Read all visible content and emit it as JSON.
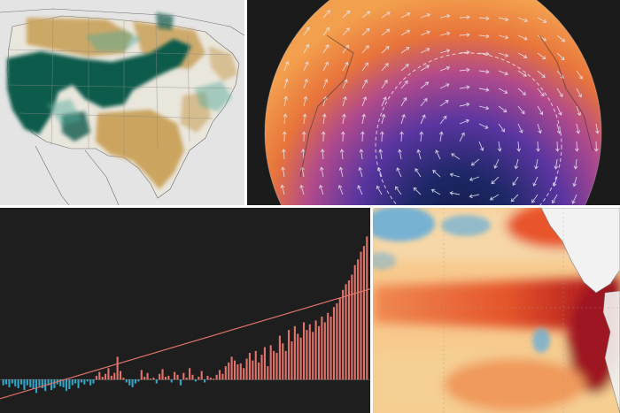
{
  "layout": {
    "background": "#ffffff"
  },
  "panels": [
    {
      "id": "precip-anomaly-map",
      "description_colors": {
        "wet": "#0b5b4c",
        "dry": "#c9a15a",
        "neutral": "#e9e6dc",
        "land_background": "#e4e4e4"
      }
    },
    {
      "id": "polar-vortex-globe",
      "description_colors": {
        "core": "#131a4a",
        "mid": "#6a3aa8",
        "outer": "#e8743b",
        "edge": "#f39a4a",
        "arrows": "#e6e6f0"
      }
    },
    {
      "id": "temperature-anomaly-bars",
      "description_colors": {
        "positive": "#e1736a",
        "negative": "#2fa7c8",
        "trend": "#e1736a",
        "background": "#1e1e1e"
      }
    },
    {
      "id": "sea-surface-temperature-map",
      "description_colors": {
        "hot": "#a51220",
        "warm": "#e8542b",
        "mild": "#f7bf7c",
        "cool": "#6aaed6",
        "land": "#f2f2f2"
      }
    }
  ],
  "chart_data": {
    "type": "bar",
    "series": [
      {
        "values": [
          -6,
          -5,
          -8,
          -4,
          -7,
          -9,
          -5,
          -11,
          -6,
          -8,
          -10,
          -14,
          -7,
          -9,
          -12,
          -6,
          -11,
          -9,
          -5,
          -7,
          -8,
          -12,
          -10,
          -6,
          -4,
          -9,
          -3,
          -5,
          -2,
          -6,
          -4,
          4,
          8,
          3,
          6,
          12,
          4,
          7,
          24,
          9,
          2,
          -3,
          -6,
          -8,
          -4,
          -2,
          10,
          3,
          7,
          1,
          2,
          -4,
          6,
          11,
          3,
          4,
          -3,
          8,
          5,
          -6,
          7,
          2,
          12,
          5,
          -2,
          3,
          9,
          -3,
          4,
          2,
          1,
          5,
          10,
          6,
          14,
          18,
          24,
          20,
          16,
          17,
          12,
          22,
          28,
          20,
          30,
          18,
          26,
          34,
          14,
          36,
          30,
          28,
          46,
          38,
          30,
          52,
          40,
          56,
          48,
          44,
          60,
          52,
          58,
          50,
          62,
          56,
          66,
          60,
          70,
          66,
          76,
          80,
          86,
          94,
          100,
          104,
          110,
          120,
          126,
          134,
          140,
          150
        ]
      }
    ],
    "trend": {
      "start": -20,
      "end": 95
    },
    "ylim": [
      -35,
      180
    ],
    "grid": false
  }
}
